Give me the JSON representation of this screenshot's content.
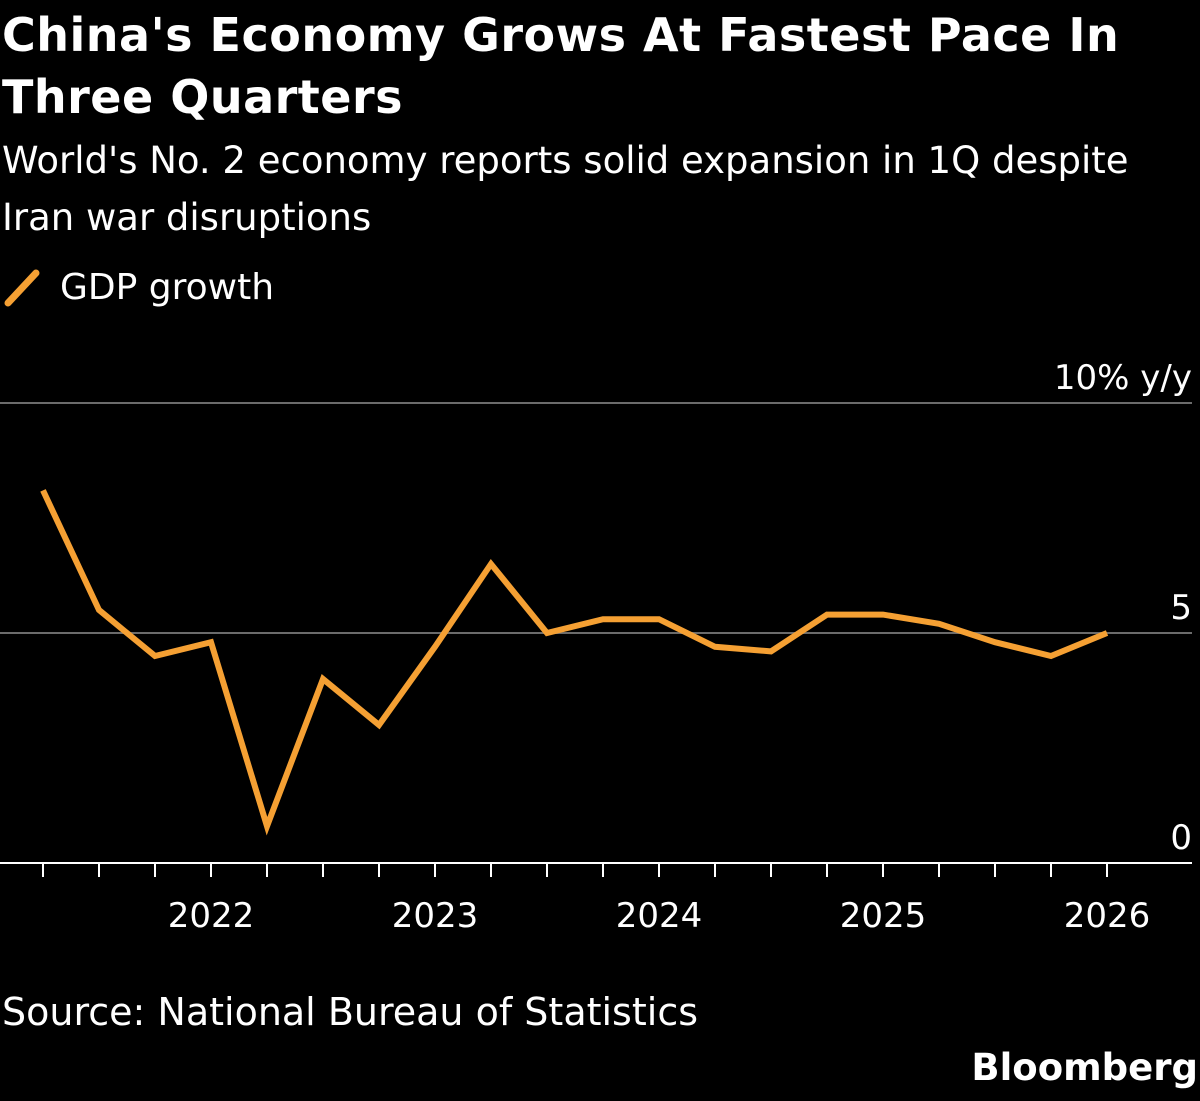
{
  "title": "China's Economy Grows At Fastest Pace In Three Quarters",
  "subtitle": "World's No. 2 economy reports solid expansion in 1Q despite Iran war disruptions",
  "source": "Source: National Bureau of Statistics",
  "logo": "Bloomberg",
  "chart_data": {
    "type": "line",
    "title": "China's Economy Grows At Fastest Pace In Three Quarters",
    "unit_label": "10% y/y",
    "legend_position": "top-left",
    "grid": true,
    "ylim": [
      0,
      10
    ],
    "yticks": [
      {
        "value": 10,
        "label": "10% y/y"
      },
      {
        "value": 5,
        "label": "5"
      },
      {
        "value": 0,
        "label": "0"
      }
    ],
    "xticks": [
      "2022",
      "2023",
      "2024",
      "2025",
      "2026"
    ],
    "x": [
      "2021 Q2",
      "2021 Q3",
      "2021 Q4",
      "2022 Q1",
      "2022 Q2",
      "2022 Q3",
      "2022 Q4",
      "2023 Q1",
      "2023 Q2",
      "2023 Q3",
      "2023 Q4",
      "2024 Q1",
      "2024 Q2",
      "2024 Q3",
      "2024 Q4",
      "2025 Q1",
      "2025 Q2",
      "2025 Q3",
      "2025 Q4",
      "2026 Q1"
    ],
    "series": [
      {
        "name": "GDP growth",
        "color": "#f5a033",
        "values": [
          8.1,
          5.5,
          4.5,
          4.8,
          0.8,
          4.0,
          3.0,
          4.7,
          6.5,
          5.0,
          5.3,
          5.3,
          4.7,
          4.6,
          5.4,
          5.4,
          5.2,
          4.8,
          4.5,
          5.0
        ]
      }
    ]
  }
}
